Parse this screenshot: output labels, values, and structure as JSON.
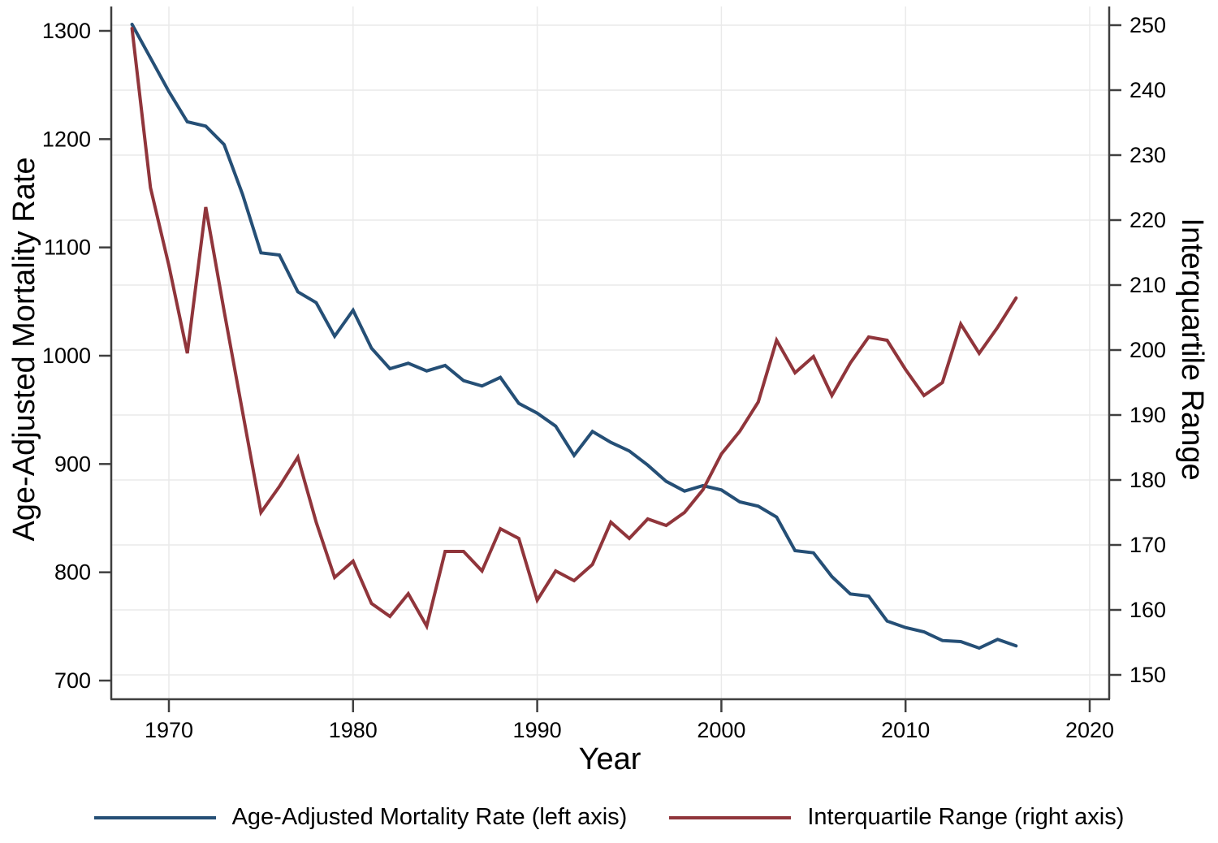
{
  "chart_data": {
    "type": "line",
    "title": "",
    "xlabel": "Year",
    "ylabel_left": "Age-Adjusted Mortality Rate",
    "ylabel_right": "Interquartile Range",
    "x_ticks": [
      1970,
      1980,
      1990,
      2000,
      2010,
      2020
    ],
    "y_left_ticks": [
      700,
      800,
      900,
      1000,
      1100,
      1200,
      1300
    ],
    "y_right_ticks": [
      150,
      160,
      170,
      180,
      190,
      200,
      210,
      220,
      230,
      240,
      250
    ],
    "y_left_lim": [
      683,
      1329
    ],
    "y_right_lim": [
      146,
      254
    ],
    "x_lim": [
      1966.9,
      2021.1
    ],
    "grid": "horizontal lines at right-axis ticks, vertical lines at decade ticks",
    "legend_position": "bottom-center",
    "x": [
      1968,
      1969,
      1970,
      1971,
      1972,
      1973,
      1974,
      1975,
      1976,
      1977,
      1978,
      1979,
      1980,
      1981,
      1982,
      1983,
      1984,
      1985,
      1986,
      1987,
      1988,
      1989,
      1990,
      1991,
      1992,
      1993,
      1994,
      1995,
      1996,
      1997,
      1998,
      1999,
      2000,
      2001,
      2002,
      2003,
      2004,
      2005,
      2006,
      2007,
      2008,
      2009,
      2010,
      2011,
      2012,
      2013,
      2014,
      2015,
      2016
    ],
    "series": [
      {
        "name": "Age-Adjusted Mortality Rate",
        "axis": "left",
        "color": "#254F76",
        "legend_label": "Age-Adjusted Mortality Rate (left axis)",
        "values": [
          1306,
          1275,
          1244,
          1216,
          1212,
          1195,
          1149,
          1095,
          1093,
          1059,
          1049,
          1018,
          1042,
          1007,
          988,
          993,
          986,
          991,
          977,
          972,
          980,
          956,
          947,
          935,
          908,
          930,
          920,
          912,
          899,
          884,
          875,
          880,
          876,
          865,
          861,
          851,
          820,
          818,
          796,
          780,
          778,
          755,
          749,
          745,
          737,
          736,
          730,
          738,
          732
        ]
      },
      {
        "name": "Interquartile Range",
        "axis": "right",
        "color": "#90353B",
        "legend_label": "Interquartile Range (right axis)",
        "values": [
          249.5,
          225,
          213,
          199.5,
          222,
          206,
          190.5,
          175,
          179,
          183.5,
          173.5,
          165,
          167.5,
          161,
          159,
          162.5,
          157.5,
          169,
          169,
          166,
          172.5,
          171,
          161.5,
          166,
          164.5,
          167,
          173.5,
          171,
          174,
          173,
          175,
          178.5,
          184,
          187.5,
          192,
          201.5,
          196.5,
          199,
          193,
          198,
          202,
          201.5,
          197,
          193,
          195,
          204,
          199.5,
          203.5,
          208
        ]
      }
    ],
    "style": {
      "grid_color": "#EAEAEA",
      "axis_color": "#3F3F3F",
      "tick_label_color": "#000000",
      "background": "#FFFFFF"
    }
  }
}
